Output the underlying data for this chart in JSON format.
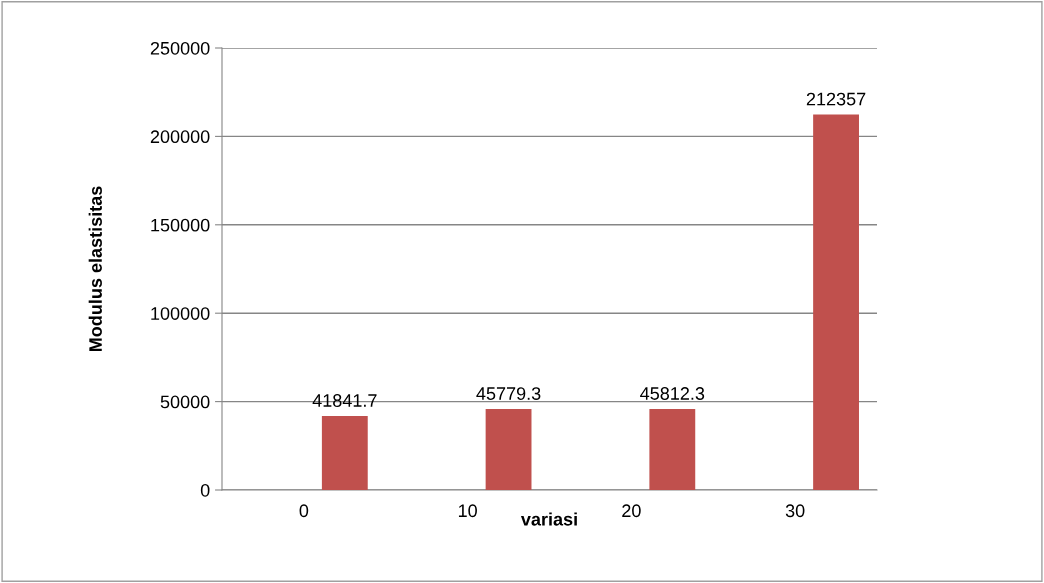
{
  "chart_data": {
    "type": "bar",
    "xlabel": "variasi",
    "ylabel": "Modulus elastisitas",
    "categories": [
      "0",
      "10",
      "20",
      "30"
    ],
    "values": [
      41841.7,
      45779.3,
      45812.3,
      212357
    ],
    "color": "#c0504d",
    "ylim": [
      0,
      250000
    ],
    "yticks": [
      0,
      50000,
      100000,
      150000,
      200000,
      250000
    ],
    "grid": "y",
    "data_labels": true
  }
}
